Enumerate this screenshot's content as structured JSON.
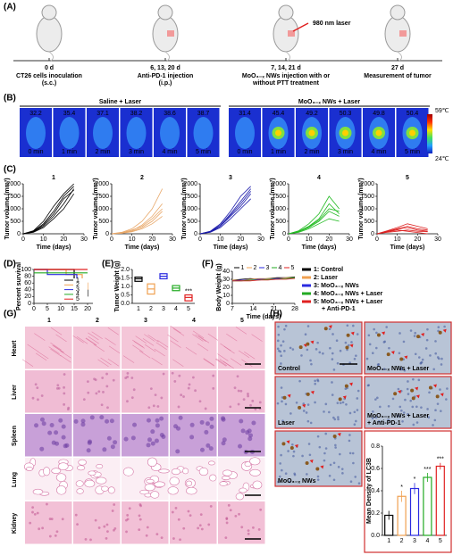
{
  "panel_labels": [
    "(A)",
    "(B)",
    "(C)",
    "(D)",
    "(E)",
    "(F)",
    "(G)",
    "(H)"
  ],
  "timeline": [
    {
      "day": "0 d",
      "lines": [
        "CT26 cells inoculation",
        "(s.c.)"
      ],
      "color": "#2a7bc8"
    },
    {
      "day": "6, 13, 20 d",
      "lines": [
        "Anti-PD-1 injection",
        "(i.p.)"
      ],
      "color": "#2a7bc8"
    },
    {
      "day": "7, 14, 21 d",
      "lines": [
        "MoO₃₋ₓ NWs injection with or",
        "without PTT treatment"
      ],
      "color": "#2a7bc8"
    },
    {
      "day": "27 d",
      "lines": [
        "Measurement of tumor"
      ],
      "color": "#e02020"
    }
  ],
  "laser_label": "980 nm laser",
  "thermal": {
    "groups": [
      "Saline + Laser",
      "MoO₃₋ₓ NWs + Laser"
    ],
    "times": [
      "0 min",
      "1 min",
      "2 min",
      "3 min",
      "4 min",
      "5 min"
    ],
    "temps": [
      [
        32.2,
        35.4,
        37.1,
        38.2,
        38.6,
        38.7
      ],
      [
        31.4,
        45.4,
        49.2,
        50.3,
        49.8,
        50.4
      ]
    ],
    "scale_max": "59℃",
    "scale_min": "24℃"
  },
  "chart_data": [
    {
      "type": "line",
      "title": "1",
      "x": [
        0,
        5,
        10,
        15,
        20,
        25
      ],
      "xlim": [
        0,
        30
      ],
      "ylim": [
        0,
        2000
      ],
      "xticks": [
        0,
        10,
        20,
        30
      ],
      "yticks": [
        0,
        500,
        1000,
        1500,
        2000
      ],
      "xlabel": "Time (days)",
      "ylabel": "Tumor volume (mm³)",
      "series": [
        {
          "color": "#000000",
          "values": [
            0,
            100,
            400,
            900,
            1500,
            1900
          ]
        },
        {
          "color": "#000000",
          "values": [
            0,
            80,
            300,
            700,
            1200,
            1800
          ]
        },
        {
          "color": "#000000",
          "values": [
            0,
            120,
            500,
            1100,
            1600,
            2000
          ]
        },
        {
          "color": "#000000",
          "values": [
            0,
            60,
            250,
            600,
            1000,
            1600
          ]
        },
        {
          "color": "#000000",
          "values": [
            0,
            90,
            350,
            800,
            1400,
            1750
          ]
        }
      ]
    },
    {
      "type": "line",
      "title": "2",
      "x": [
        0,
        5,
        10,
        15,
        20,
        25
      ],
      "xlim": [
        0,
        30
      ],
      "ylim": [
        0,
        2000
      ],
      "xticks": [
        0,
        10,
        20,
        30
      ],
      "yticks": [
        0,
        500,
        1000,
        1500,
        2000
      ],
      "xlabel": "Time (days)",
      "ylabel": "Tumor volume (mm³)",
      "series": [
        {
          "color": "#e8a86a",
          "values": [
            0,
            50,
            150,
            300,
            600,
            1000
          ]
        },
        {
          "color": "#e8a86a",
          "values": [
            0,
            30,
            100,
            250,
            500,
            900
          ]
        },
        {
          "color": "#e8a86a",
          "values": [
            0,
            60,
            200,
            500,
            1000,
            1800
          ]
        },
        {
          "color": "#e8a86a",
          "values": [
            0,
            20,
            80,
            200,
            400,
            700
          ]
        },
        {
          "color": "#e8a86a",
          "values": [
            0,
            40,
            120,
            350,
            700,
            1200
          ]
        }
      ]
    },
    {
      "type": "line",
      "title": "3",
      "x": [
        0,
        5,
        10,
        15,
        20,
        25
      ],
      "xlim": [
        0,
        30
      ],
      "ylim": [
        0,
        2000
      ],
      "xticks": [
        0,
        10,
        20,
        30
      ],
      "yticks": [
        0,
        500,
        1000,
        1500,
        2000
      ],
      "xlabel": "Time (days)",
      "ylabel": "Tumor volume (mm³)",
      "series": [
        {
          "color": "#1a1aaa",
          "values": [
            0,
            90,
            350,
            800,
            1300,
            1800
          ]
        },
        {
          "color": "#1a1aaa",
          "values": [
            0,
            70,
            300,
            700,
            1100,
            1600
          ]
        },
        {
          "color": "#1a1aaa",
          "values": [
            0,
            100,
            400,
            900,
            1500,
            1900
          ]
        },
        {
          "color": "#1a1aaa",
          "values": [
            0,
            60,
            250,
            600,
            1000,
            1400
          ]
        },
        {
          "color": "#1a1aaa",
          "values": [
            0,
            80,
            300,
            750,
            1200,
            1700
          ]
        }
      ]
    },
    {
      "type": "line",
      "title": "4",
      "x": [
        0,
        5,
        10,
        15,
        20,
        25
      ],
      "xlim": [
        0,
        30
      ],
      "ylim": [
        0,
        2000
      ],
      "xticks": [
        0,
        10,
        20,
        30
      ],
      "yticks": [
        0,
        500,
        1000,
        1500,
        2000
      ],
      "xlabel": "Time (days)",
      "ylabel": "Tumor volume (mm³)",
      "series": [
        {
          "color": "#22bb22",
          "values": [
            0,
            100,
            300,
            600,
            1200,
            800
          ]
        },
        {
          "color": "#22bb22",
          "values": [
            0,
            80,
            250,
            500,
            900,
            700
          ]
        },
        {
          "color": "#22bb22",
          "values": [
            0,
            120,
            400,
            800,
            1500,
            1000
          ]
        },
        {
          "color": "#22bb22",
          "values": [
            0,
            60,
            200,
            400,
            600,
            500
          ]
        },
        {
          "color": "#22bb22",
          "values": [
            0,
            90,
            280,
            550,
            1000,
            900
          ]
        }
      ]
    },
    {
      "type": "line",
      "title": "5",
      "x": [
        0,
        5,
        10,
        15,
        20,
        25
      ],
      "xlim": [
        0,
        30
      ],
      "ylim": [
        0,
        2000
      ],
      "xticks": [
        0,
        10,
        20,
        30
      ],
      "yticks": [
        0,
        500,
        1000,
        1500,
        2000
      ],
      "xlabel": "Time (days)",
      "ylabel": "Tumor volume (mm³)",
      "series": [
        {
          "color": "#dd2222",
          "values": [
            0,
            100,
            200,
            300,
            200,
            150
          ]
        },
        {
          "color": "#dd2222",
          "values": [
            0,
            80,
            150,
            100,
            50,
            0
          ]
        },
        {
          "color": "#dd2222",
          "values": [
            0,
            120,
            250,
            400,
            300,
            200
          ]
        },
        {
          "color": "#dd2222",
          "values": [
            0,
            60,
            100,
            150,
            100,
            80
          ]
        },
        {
          "color": "#dd2222",
          "values": [
            0,
            90,
            180,
            250,
            150,
            100
          ]
        }
      ]
    },
    {
      "type": "line",
      "step": true,
      "xlim": [
        0,
        22
      ],
      "ylim": [
        0,
        100
      ],
      "xticks": [
        0,
        5,
        10,
        15,
        20
      ],
      "yticks": [
        0,
        20,
        40,
        60,
        80,
        100
      ],
      "ylabel": "Percent survival",
      "series": [
        {
          "name": "1",
          "color": "#000000",
          "x": [
            0,
            15,
            17,
            20
          ],
          "values": [
            100,
            70,
            40,
            20
          ]
        },
        {
          "name": "2",
          "color": "#f0a050",
          "x": [
            0,
            12,
            18,
            20
          ],
          "values": [
            100,
            85,
            60,
            40
          ]
        },
        {
          "name": "3",
          "color": "#2a2ae0",
          "x": [
            0,
            5,
            16,
            19,
            20
          ],
          "values": [
            100,
            85,
            70,
            50,
            50
          ]
        },
        {
          "name": "4",
          "color": "#22aa22",
          "x": [
            0,
            20
          ],
          "values": [
            90,
            90
          ]
        },
        {
          "name": "5",
          "color": "#e02020",
          "x": [
            0,
            20
          ],
          "values": [
            100,
            100
          ]
        }
      ]
    },
    {
      "type": "box",
      "categories": [
        "1",
        "2",
        "3",
        "4",
        "5"
      ],
      "ylim": [
        0,
        2
      ],
      "yticks": [
        {
          "value": 0,
          "label": "0.0"
        },
        {
          "value": 0.5,
          "label": "0.5"
        },
        {
          "value": 1,
          "label": "1.0"
        },
        {
          "value": 1.5,
          "label": "1.5"
        },
        {
          "value": 2,
          "label": "2.0"
        }
      ],
      "ylabel": "Tumor Weight (g)",
      "low": [
        1.3,
        0.55,
        1.45,
        0.75,
        0.15
      ],
      "high": [
        1.55,
        1.15,
        1.75,
        1.05,
        0.5
      ],
      "mean": [
        1.45,
        0.85,
        1.6,
        0.9,
        0.35
      ],
      "colors": [
        "#000000",
        "#f0a050",
        "#2a2ae0",
        "#22aa22",
        "#e02020"
      ],
      "annotations": [
        null,
        null,
        null,
        null,
        "***"
      ]
    },
    {
      "type": "line",
      "x": [
        7,
        10,
        13,
        16,
        19,
        22,
        25,
        28
      ],
      "xlim": [
        7,
        28
      ],
      "ylim": [
        0,
        40
      ],
      "xticks": [
        7,
        14,
        21,
        28
      ],
      "yticks": [
        0,
        10,
        20,
        30,
        40
      ],
      "xlabel": "Time (days)",
      "ylabel": "Body Weight (g)",
      "series": [
        {
          "name": "1",
          "color": "#000000",
          "values": [
            29,
            30,
            31,
            30,
            31,
            32,
            32,
            33
          ]
        },
        {
          "name": "2",
          "color": "#f0a050",
          "values": [
            29,
            29,
            30,
            31,
            31,
            31,
            32,
            32
          ]
        },
        {
          "name": "3",
          "color": "#2a2ae0",
          "values": [
            28,
            29,
            29,
            30,
            30,
            31,
            31,
            31
          ]
        },
        {
          "name": "4",
          "color": "#22aa22",
          "values": [
            28,
            28,
            29,
            29,
            30,
            30,
            31,
            32
          ]
        },
        {
          "name": "5",
          "color": "#e02020",
          "values": [
            28,
            28,
            28,
            29,
            29,
            30,
            30,
            31
          ]
        }
      ]
    },
    {
      "type": "bar",
      "categories": [
        "1",
        "2",
        "3",
        "4",
        "5"
      ],
      "values": [
        0.18,
        0.35,
        0.42,
        0.52,
        0.62
      ],
      "errors": [
        0.04,
        0.05,
        0.05,
        0.04,
        0.03
      ],
      "colors": [
        "#000000",
        "#f0a050",
        "#2a2ae0",
        "#22aa22",
        "#e02020"
      ],
      "ylim": [
        0,
        0.8
      ],
      "yticks": [
        {
          "value": 0,
          "label": "0.0"
        },
        {
          "value": 0.2,
          "label": "0.2"
        },
        {
          "value": 0.4,
          "label": "0.4"
        },
        {
          "value": 0.6,
          "label": "0.6"
        },
        {
          "value": 0.8,
          "label": "0.8"
        }
      ],
      "ylabel": "Mean Density of LC3B",
      "annotations": [
        null,
        "*",
        "*",
        "***",
        "***"
      ]
    }
  ],
  "group_legend": [
    {
      "label": "1: Control",
      "color": "#000000"
    },
    {
      "label": "2: Laser",
      "color": "#f0a050"
    },
    {
      "label": "3: MoO₃₋ₓ NWs",
      "color": "#2a2ae0"
    },
    {
      "label": "4: MoO₃₋ₓ NWs + Laser",
      "color": "#22aa22"
    },
    {
      "label": "5: MoO₃₋ₓ NWs + Laser",
      "label2": "+ Anti-PD-1",
      "color": "#e02020"
    }
  ],
  "histology": {
    "columns": [
      "1",
      "2",
      "3",
      "4",
      "5"
    ],
    "rows": [
      "Heart",
      "Liver",
      "Spleen",
      "Lung",
      "Kidney"
    ]
  },
  "ihc": {
    "labels": [
      "Control",
      "MoO₃₋ₓ NWs + Laser",
      "Laser",
      "MoO₃₋ₓ NWs + Laser",
      "+ Anti-PD-1",
      "MoO₃₋ₓ NWs"
    ]
  }
}
